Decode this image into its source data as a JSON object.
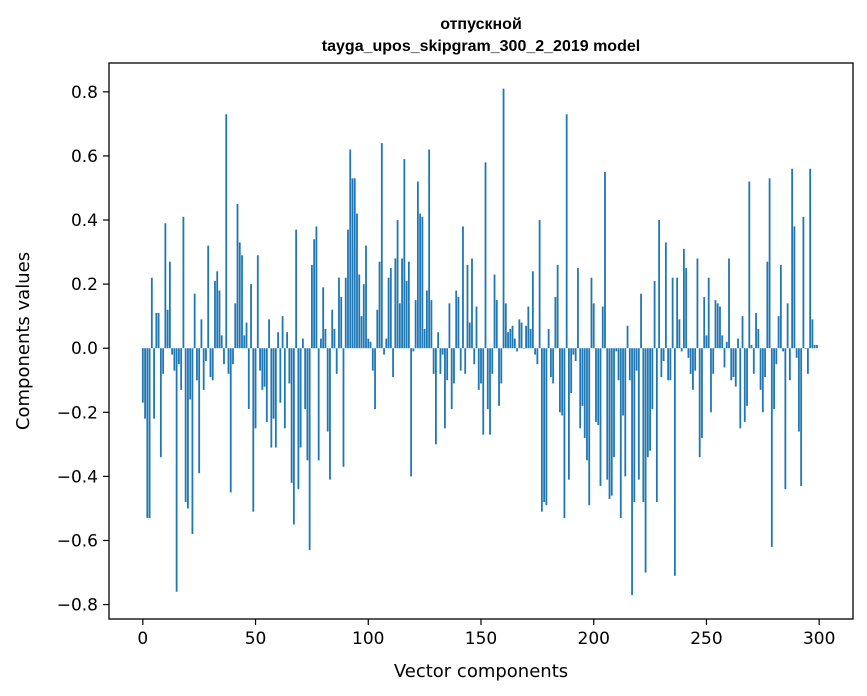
{
  "chart_data": {
    "type": "bar",
    "title": "отпускной",
    "subtitle": "tayga_upos_skipgram_300_2_2019 model",
    "xlabel": "Vector components",
    "ylabel": "Components values",
    "xlim": [
      -15,
      315
    ],
    "ylim": [
      -0.845,
      0.89
    ],
    "xticks": [
      0,
      50,
      100,
      150,
      200,
      250,
      300
    ],
    "xtick_labels": [
      "0",
      "50",
      "100",
      "150",
      "200",
      "250",
      "300"
    ],
    "yticks": [
      -0.8,
      -0.6,
      -0.4,
      -0.2,
      0.0,
      0.2,
      0.4,
      0.6,
      0.8
    ],
    "ytick_labels": [
      "−0.8",
      "−0.6",
      "−0.4",
      "−0.2",
      "0.0",
      "0.2",
      "0.4",
      "0.6",
      "0.8"
    ],
    "bar_color": "#1f77b4",
    "grid": false,
    "values": [
      -0.17,
      -0.22,
      -0.53,
      -0.53,
      0.22,
      -0.22,
      0.11,
      0.11,
      -0.34,
      -0.08,
      0.39,
      0.12,
      0.27,
      -0.02,
      -0.07,
      -0.76,
      -0.05,
      -0.13,
      0.41,
      -0.48,
      -0.5,
      -0.16,
      -0.58,
      0.17,
      -0.1,
      -0.39,
      0.09,
      -0.13,
      -0.04,
      0.32,
      -0.09,
      -0.1,
      0.21,
      0.24,
      0.18,
      0.04,
      -0.05,
      0.73,
      -0.08,
      -0.45,
      -0.05,
      0.14,
      0.45,
      0.33,
      0.29,
      0.04,
      0.08,
      -0.19,
      0.2,
      -0.51,
      -0.25,
      0.29,
      -0.07,
      -0.13,
      -0.12,
      -0.23,
      0.09,
      -0.31,
      -0.22,
      -0.31,
      0.05,
      -0.17,
      0.1,
      -0.25,
      0.05,
      -0.11,
      -0.42,
      -0.55,
      0.37,
      -0.44,
      -0.31,
      0.03,
      -0.19,
      -0.35,
      -0.63,
      0.26,
      0.34,
      0.38,
      -0.35,
      0.03,
      0.19,
      0.06,
      -0.26,
      -0.41,
      0.12,
      0.06,
      -0.08,
      0.22,
      0.16,
      -0.37,
      0.22,
      0.37,
      0.62,
      0.53,
      0.53,
      0.42,
      0.23,
      0.1,
      0.2,
      0.32,
      0.03,
      0.02,
      -0.07,
      -0.19,
      0.12,
      0.27,
      0.64,
      -0.02,
      0.03,
      0.22,
      0.25,
      -0.09,
      0.28,
      0.4,
      0.14,
      0.28,
      0.59,
      0.21,
      0.27,
      -0.4,
      -0.01,
      0.15,
      0.52,
      0.42,
      0.41,
      0.06,
      0.18,
      0.62,
      0.15,
      -0.08,
      -0.3,
      0.05,
      -0.08,
      -0.02,
      -0.25,
      -0.1,
      0.14,
      -0.19,
      -0.11,
      0.18,
      0.16,
      -0.07,
      0.38,
      -0.08,
      0.26,
      0.08,
      0.28,
      -0.05,
      0.13,
      -0.13,
      -0.11,
      -0.27,
      0.58,
      -0.19,
      -0.27,
      -0.08,
      0.23,
      0.15,
      -0.18,
      -0.11,
      0.81,
      0.14,
      0.05,
      0.06,
      0.07,
      0.03,
      -0.01,
      0.09,
      0.08,
      0.0,
      0.07,
      0.13,
      0.06,
      0.24,
      -0.02,
      -0.05,
      0.4,
      -0.51,
      -0.48,
      -0.49,
      0.06,
      -0.09,
      -0.11,
      0.16,
      0.26,
      -0.2,
      -0.21,
      -0.53,
      0.73,
      -0.41,
      -0.14,
      -0.02,
      -0.04,
      0.25,
      -0.25,
      -0.18,
      -0.28,
      -0.35,
      -0.49,
      0.22,
      0.14,
      -0.23,
      -0.24,
      -0.43,
      0.13,
      0.55,
      -0.41,
      -0.47,
      -0.46,
      -0.34,
      -0.01,
      -0.1,
      -0.53,
      -0.21,
      -0.4,
      0.07,
      -0.1,
      -0.77,
      -0.48,
      -0.07,
      -0.41,
      0.17,
      -0.48,
      -0.7,
      -0.34,
      -0.32,
      -0.19,
      0.21,
      -0.48,
      0.4,
      -0.09,
      -0.04,
      0.33,
      -0.1,
      -0.1,
      0.22,
      -0.71,
      0.22,
      0.09,
      -0.01,
      0.31,
      0.25,
      -0.03,
      -0.08,
      -0.13,
      -0.07,
      0.28,
      -0.34,
      -0.28,
      0.16,
      0.04,
      0.22,
      -0.2,
      -0.08,
      0.15,
      0.14,
      0.13,
      0.04,
      -0.06,
      0.02,
      0.28,
      -0.1,
      -0.09,
      -0.12,
      0.03,
      -0.25,
      0.1,
      -0.23,
      -0.18,
      0.52,
      0.01,
      -0.08,
      0.11,
      0.06,
      -0.13,
      -0.2,
      -0.09,
      0.27,
      0.53,
      -0.62,
      -0.19,
      -0.05,
      0.1,
      0.26,
      -0.01,
      -0.44,
      0.14,
      -0.1,
      0.56,
      0.38,
      -0.03,
      -0.26,
      -0.43,
      0.41,
      0.0,
      -0.08,
      0.56,
      0.09,
      0.01,
      0.01
    ]
  }
}
